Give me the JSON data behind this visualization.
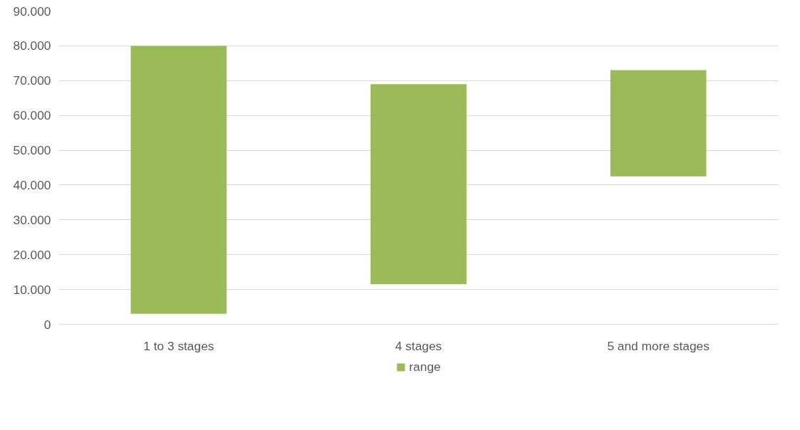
{
  "chart_data": {
    "type": "bar",
    "categories": [
      "1 to 3 stages",
      "4 stages",
      "5 and more stages"
    ],
    "series": [
      {
        "name": "range",
        "color": "#9bbb59",
        "values": [
          77000,
          57500,
          30500
        ],
        "base": [
          3000,
          11500,
          42500
        ]
      }
    ],
    "ylim": [
      0,
      90000
    ],
    "yticks": [
      0,
      {
        "value": 10000,
        "label": "10.000"
      },
      {
        "value": 20000,
        "label": "20.000"
      },
      {
        "value": 30000,
        "label": "30.000"
      },
      {
        "value": 40000,
        "label": "40.000"
      },
      {
        "value": 50000,
        "label": "50.000"
      },
      {
        "value": 60000,
        "label": "60.000"
      },
      {
        "value": 70000,
        "label": "70.000"
      },
      {
        "value": 80000,
        "label": "80.000"
      },
      {
        "value": 90000,
        "label": "90.000"
      }
    ],
    "grid": "y",
    "legend": "bottom"
  }
}
